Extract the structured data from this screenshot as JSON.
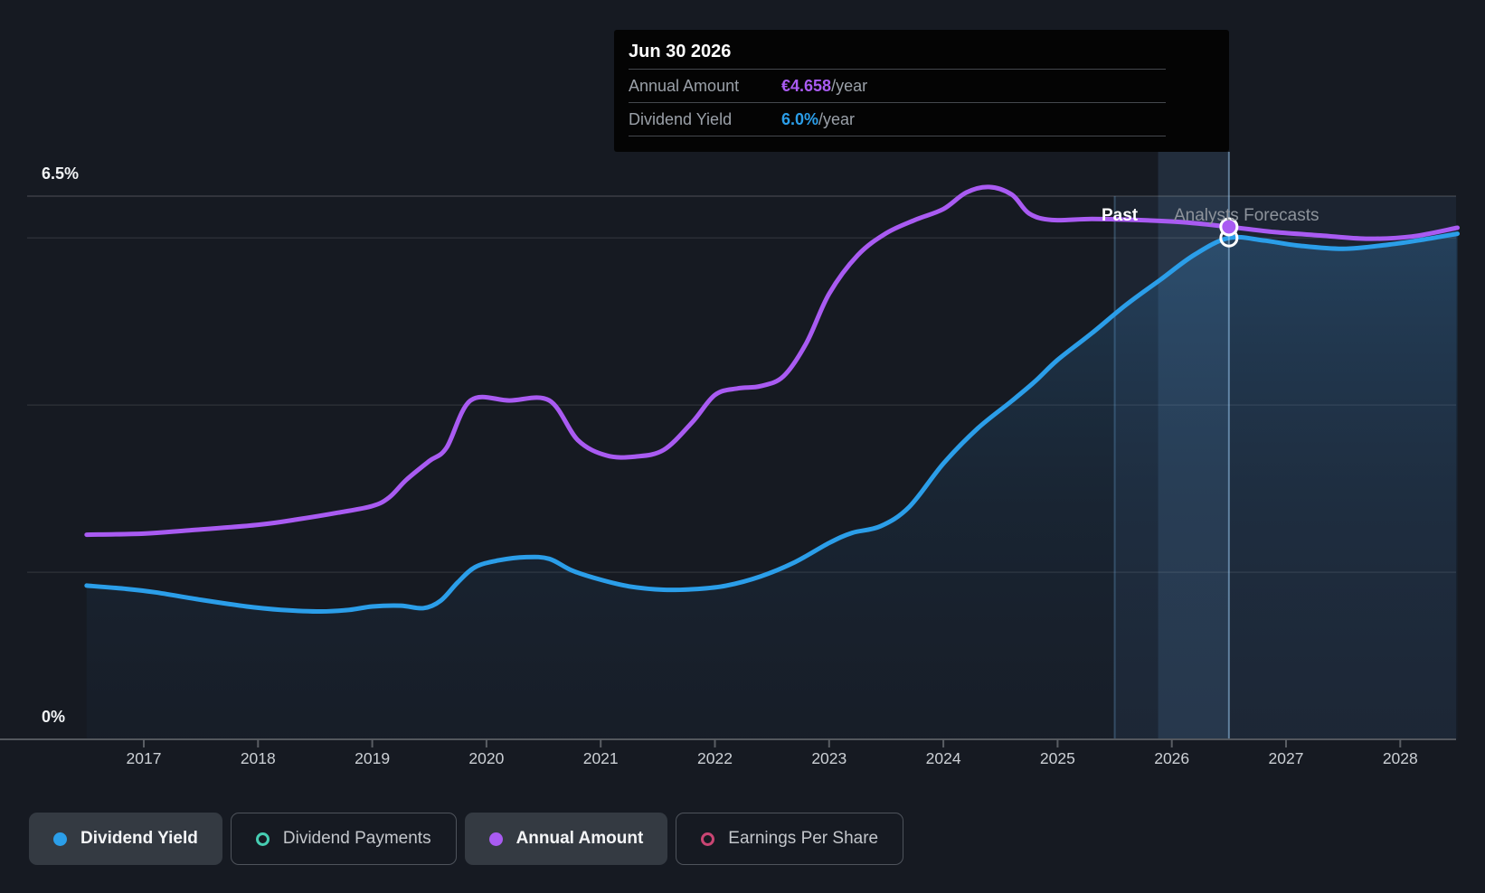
{
  "tooltip": {
    "date": "Jun 30 2026",
    "rows": [
      {
        "label": "Annual Amount",
        "value": "€4.658",
        "suffix": "/year",
        "color": "#a95bf2"
      },
      {
        "label": "Dividend Yield",
        "value": "6.0%",
        "suffix": "/year",
        "color": "#2b9ee9"
      }
    ]
  },
  "regions": {
    "past_label": "Past",
    "forecast_label": "Analysts Forecasts"
  },
  "legend": {
    "items": [
      {
        "label": "Dividend Yield",
        "color": "#2b9ee9",
        "style": "filled",
        "active": true
      },
      {
        "label": "Dividend Payments",
        "color": "#46cdb2",
        "style": "outline",
        "active": false
      },
      {
        "label": "Annual Amount",
        "color": "#a95bf2",
        "style": "filled",
        "active": true
      },
      {
        "label": "Earnings Per Share",
        "color": "#c94573",
        "style": "outline",
        "active": false
      }
    ]
  },
  "chart_data": {
    "type": "line",
    "title": "Dividend history and forecast",
    "x_axis": {
      "range": [
        2016.5,
        2028.5
      ],
      "ticks": [
        2017,
        2018,
        2019,
        2020,
        2021,
        2022,
        2023,
        2024,
        2025,
        2026,
        2027,
        2028
      ]
    },
    "y_axis": {
      "unit": "%",
      "range": [
        0,
        6.5
      ],
      "gridlines": [
        0,
        2,
        4,
        6,
        6.5
      ],
      "labels": [
        {
          "value": 6.5,
          "text": "6.5%"
        },
        {
          "value": 0,
          "text": "0%"
        }
      ]
    },
    "regions": {
      "divider_x": 2025.5,
      "highlight_span": [
        2025.88,
        2026.5
      ],
      "hover_x": 2026.5
    },
    "series": [
      {
        "name": "Dividend Yield",
        "axis": "yield",
        "unit": "%",
        "color": "#2b9ee9",
        "fill_area": true,
        "marker": {
          "x": 2026.5,
          "y": 6.0,
          "style": "hollow"
        },
        "points": [
          [
            2016.5,
            1.84
          ],
          [
            2016.85,
            1.8
          ],
          [
            2017.1,
            1.76
          ],
          [
            2017.5,
            1.67
          ],
          [
            2017.9,
            1.59
          ],
          [
            2018.2,
            1.55
          ],
          [
            2018.55,
            1.53
          ],
          [
            2018.8,
            1.55
          ],
          [
            2019.0,
            1.59
          ],
          [
            2019.25,
            1.6
          ],
          [
            2019.45,
            1.57
          ],
          [
            2019.6,
            1.66
          ],
          [
            2019.75,
            1.88
          ],
          [
            2019.9,
            2.06
          ],
          [
            2020.1,
            2.14
          ],
          [
            2020.35,
            2.18
          ],
          [
            2020.55,
            2.16
          ],
          [
            2020.75,
            2.02
          ],
          [
            2021.0,
            1.91
          ],
          [
            2021.25,
            1.83
          ],
          [
            2021.55,
            1.79
          ],
          [
            2021.85,
            1.8
          ],
          [
            2022.1,
            1.84
          ],
          [
            2022.4,
            1.95
          ],
          [
            2022.7,
            2.12
          ],
          [
            2023.0,
            2.35
          ],
          [
            2023.2,
            2.47
          ],
          [
            2023.45,
            2.55
          ],
          [
            2023.7,
            2.78
          ],
          [
            2024.0,
            3.3
          ],
          [
            2024.3,
            3.72
          ],
          [
            2024.6,
            4.05
          ],
          [
            2024.8,
            4.28
          ],
          [
            2025.0,
            4.54
          ],
          [
            2025.3,
            4.86
          ],
          [
            2025.6,
            5.2
          ],
          [
            2025.9,
            5.5
          ],
          [
            2026.2,
            5.8
          ],
          [
            2026.5,
            6.0
          ],
          [
            2026.8,
            5.97
          ],
          [
            2027.1,
            5.91
          ],
          [
            2027.5,
            5.87
          ],
          [
            2027.9,
            5.92
          ],
          [
            2028.2,
            5.98
          ],
          [
            2028.5,
            6.05
          ]
        ]
      },
      {
        "name": "Annual Amount",
        "axis": "amount",
        "unit": "EUR/year",
        "color": "#a95bf2",
        "fill_area": false,
        "marker": {
          "x": 2026.5,
          "y": 4.658,
          "style": "filled"
        },
        "points": [
          [
            2016.5,
            1.86
          ],
          [
            2017.0,
            1.87
          ],
          [
            2017.4,
            1.9
          ],
          [
            2018.0,
            1.95
          ],
          [
            2018.35,
            2.0
          ],
          [
            2018.7,
            2.06
          ],
          [
            2019.0,
            2.12
          ],
          [
            2019.15,
            2.2
          ],
          [
            2019.3,
            2.36
          ],
          [
            2019.5,
            2.53
          ],
          [
            2019.65,
            2.65
          ],
          [
            2019.86,
            3.08
          ],
          [
            2020.2,
            3.08
          ],
          [
            2020.55,
            3.08
          ],
          [
            2020.8,
            2.72
          ],
          [
            2021.05,
            2.58
          ],
          [
            2021.3,
            2.57
          ],
          [
            2021.55,
            2.63
          ],
          [
            2021.8,
            2.88
          ],
          [
            2022.0,
            3.13
          ],
          [
            2022.2,
            3.19
          ],
          [
            2022.4,
            3.21
          ],
          [
            2022.6,
            3.3
          ],
          [
            2022.8,
            3.6
          ],
          [
            2023.0,
            4.05
          ],
          [
            2023.25,
            4.4
          ],
          [
            2023.5,
            4.6
          ],
          [
            2023.75,
            4.72
          ],
          [
            2024.0,
            4.82
          ],
          [
            2024.2,
            4.97
          ],
          [
            2024.4,
            5.02
          ],
          [
            2024.6,
            4.95
          ],
          [
            2024.75,
            4.78
          ],
          [
            2024.95,
            4.72
          ],
          [
            2025.3,
            4.73
          ],
          [
            2025.7,
            4.72
          ],
          [
            2026.1,
            4.7
          ],
          [
            2026.5,
            4.658
          ],
          [
            2026.9,
            4.61
          ],
          [
            2027.3,
            4.58
          ],
          [
            2027.7,
            4.55
          ],
          [
            2028.1,
            4.57
          ],
          [
            2028.5,
            4.65
          ]
        ]
      }
    ]
  }
}
